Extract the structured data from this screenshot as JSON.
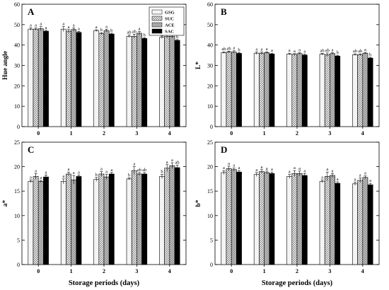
{
  "colors": {
    "GSG": "#f4f4f4",
    "SUC": "#cfcfcf",
    "ACE": "#b8b8b8",
    "SAC": "#000000"
  },
  "chart_data": [
    {
      "panel": "A",
      "type": "bar",
      "categories": [
        "0",
        "1",
        "2",
        "3",
        "4"
      ],
      "xlabel": "",
      "ylabel": "Hue angle",
      "ylim": [
        0,
        60
      ],
      "yticks": [
        0,
        10,
        20,
        30,
        40,
        50,
        60
      ],
      "legend": {
        "placement": "top-right",
        "entries": [
          "GSG",
          "SUC",
          "ACE",
          "SAC"
        ]
      },
      "series": [
        {
          "name": "GSG",
          "values": [
            47.8,
            47.8,
            47.1,
            44.3,
            43.8
          ],
          "errors": [
            0.6,
            1.2,
            0.4,
            0.6,
            0.6
          ],
          "labels": [
            "a",
            "a",
            "a",
            "ab",
            "ab"
          ]
        },
        {
          "name": "SUC",
          "values": [
            47.8,
            46.8,
            45.6,
            44.3,
            44.3
          ],
          "errors": [
            0.6,
            0.8,
            0.5,
            1.0,
            0.8
          ],
          "labels": [
            "a",
            "a",
            "b",
            "ab",
            "ab"
          ]
        },
        {
          "name": "ACE",
          "values": [
            48.0,
            47.6,
            47.1,
            45.8,
            44.3
          ],
          "errors": [
            1.0,
            0.8,
            0.6,
            0.8,
            0.8
          ],
          "labels": [
            "a",
            "a",
            "a",
            "a",
            "a"
          ]
        },
        {
          "name": "SAC",
          "values": [
            46.8,
            46.2,
            45.4,
            43.2,
            42.3
          ],
          "errors": [
            0.4,
            0.5,
            0.4,
            0.4,
            0.4
          ],
          "labels": [
            "a",
            "a",
            "b",
            "b",
            "b"
          ]
        }
      ]
    },
    {
      "panel": "B",
      "type": "bar",
      "categories": [
        "0",
        "1",
        "2",
        "3",
        "4"
      ],
      "xlabel": "",
      "ylabel": "L*",
      "ylim": [
        0,
        60
      ],
      "yticks": [
        0,
        10,
        20,
        30,
        40,
        50,
        60
      ],
      "series": [
        {
          "name": "GSG",
          "values": [
            36.3,
            36.0,
            35.6,
            35.5,
            35.3
          ],
          "errors": [
            0.4,
            0.6,
            0.4,
            0.4,
            0.4
          ],
          "labels": [
            "ab",
            "a",
            "a",
            "ab",
            "ab"
          ]
        },
        {
          "name": "SUC",
          "values": [
            36.6,
            36.0,
            35.4,
            35.3,
            35.3
          ],
          "errors": [
            0.4,
            0.6,
            0.4,
            0.8,
            0.4
          ],
          "labels": [
            "ab",
            "a",
            "a",
            "ab",
            "ab"
          ]
        },
        {
          "name": "ACE",
          "values": [
            36.6,
            36.3,
            35.8,
            35.8,
            36.0
          ],
          "errors": [
            0.6,
            0.4,
            0.4,
            0.4,
            0.4
          ],
          "labels": [
            "a",
            "a",
            "a",
            "a",
            "a"
          ]
        },
        {
          "name": "SAC",
          "values": [
            35.9,
            35.6,
            35.1,
            34.6,
            33.6
          ],
          "errors": [
            0.4,
            0.4,
            0.4,
            0.4,
            0.4
          ],
          "labels": [
            "b",
            "a",
            "a",
            "b",
            "b"
          ]
        }
      ]
    },
    {
      "panel": "C",
      "type": "bar",
      "categories": [
        "0",
        "1",
        "2",
        "3",
        "4"
      ],
      "xlabel": "Storage periods (days)",
      "ylabel": "a*",
      "ylim": [
        0,
        25
      ],
      "yticks": [
        0,
        5,
        10,
        15,
        20,
        25
      ],
      "series": [
        {
          "name": "GSG",
          "values": [
            17.0,
            17.0,
            17.4,
            17.5,
            18.0
          ],
          "errors": [
            0.3,
            0.5,
            0.4,
            0.2,
            0.4
          ],
          "labels": [
            "a",
            "a",
            "b",
            "b",
            "b"
          ]
        },
        {
          "name": "SUC",
          "values": [
            18.0,
            18.5,
            18.5,
            19.2,
            19.7
          ],
          "errors": [
            0.6,
            0.4,
            0.5,
            0.8,
            0.7
          ],
          "labels": [
            "a",
            "a",
            "a",
            "a",
            "a"
          ]
        },
        {
          "name": "ACE",
          "values": [
            17.0,
            17.3,
            17.9,
            18.5,
            20.2
          ],
          "errors": [
            0.2,
            0.9,
            0.5,
            0.3,
            0.6
          ],
          "labels": [
            "a",
            "a",
            "a",
            "ab",
            "a"
          ]
        },
        {
          "name": "SAC",
          "values": [
            17.9,
            18.0,
            18.5,
            18.5,
            19.8
          ],
          "errors": [
            0.4,
            0.3,
            0.3,
            0.3,
            0.5
          ],
          "labels": [
            "a",
            "a",
            "a",
            "ab",
            "ab"
          ]
        }
      ]
    },
    {
      "panel": "D",
      "type": "bar",
      "categories": [
        "0",
        "1",
        "2",
        "3",
        "4"
      ],
      "xlabel": "Storage periods (days)",
      "ylabel": "b*",
      "ylim": [
        0,
        25
      ],
      "yticks": [
        0,
        5,
        10,
        15,
        20,
        25
      ],
      "series": [
        {
          "name": "GSG",
          "values": [
            18.8,
            18.4,
            18.0,
            17.0,
            16.5
          ],
          "errors": [
            0.4,
            0.4,
            0.4,
            0.3,
            0.3
          ],
          "labels": [
            "a",
            "a",
            "a",
            "a",
            "a"
          ]
        },
        {
          "name": "SUC",
          "values": [
            19.6,
            19.0,
            18.6,
            18.0,
            17.2
          ],
          "errors": [
            0.5,
            0.4,
            0.6,
            0.9,
            0.5
          ],
          "labels": [
            "a",
            "a",
            "a",
            "a",
            "a"
          ]
        },
        {
          "name": "ACE",
          "values": [
            19.4,
            18.8,
            18.6,
            18.2,
            17.8
          ],
          "errors": [
            0.3,
            0.3,
            0.5,
            0.4,
            0.3
          ],
          "labels": [
            "a",
            "a",
            "a",
            "a",
            "a"
          ]
        },
        {
          "name": "SAC",
          "values": [
            18.9,
            18.6,
            18.2,
            16.6,
            16.3
          ],
          "errors": [
            0.3,
            0.3,
            0.4,
            0.3,
            0.3
          ],
          "labels": [
            "a",
            "a",
            "a",
            "a",
            "a"
          ]
        }
      ]
    }
  ]
}
